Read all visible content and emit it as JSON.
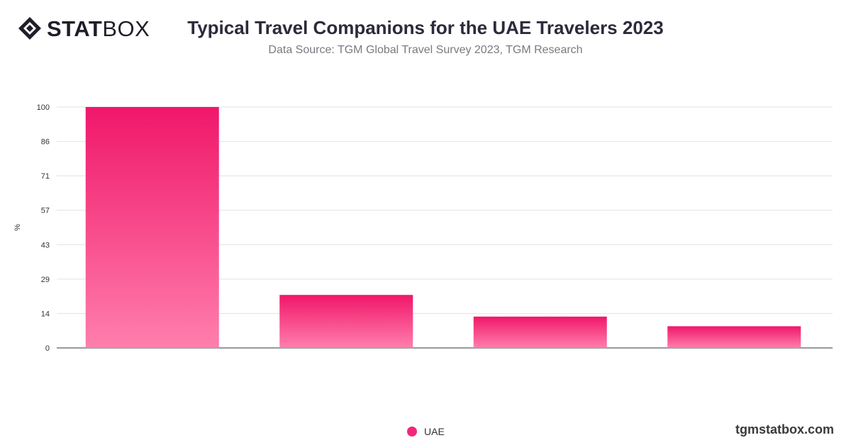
{
  "brand": {
    "logo_bold": "STAT",
    "logo_light": "BOX",
    "website": "tgmstatbox.com"
  },
  "header": {
    "title": "Typical Travel Companions for the UAE Travelers 2023",
    "subtitle": "Data Source: TGM Global Travel Survey 2023, TGM Research"
  },
  "chart_data": {
    "type": "bar",
    "title": "Typical Travel Companions for the UAE Travelers 2023",
    "subtitle": "Data Source: TGM Global Travel Survey 2023, TGM Research",
    "xlabel": "",
    "ylabel": "%",
    "ylim": [
      0,
      100
    ],
    "yticks": [
      "0",
      "14",
      "29",
      "43",
      "57",
      "71",
      "86",
      "100"
    ],
    "categories": [
      "",
      "",
      "",
      ""
    ],
    "series": [
      {
        "name": "UAE",
        "values": [
          100,
          22,
          13,
          9
        ]
      }
    ],
    "legend_position": "bottom-center",
    "grid": true,
    "colors": {
      "bar_top": "#f0176a",
      "bar_bottom": "#ff7eac",
      "grid": "#e2e2e2",
      "axis": "#333333"
    }
  },
  "legend": {
    "label": "UAE",
    "color": "#f0287a"
  }
}
